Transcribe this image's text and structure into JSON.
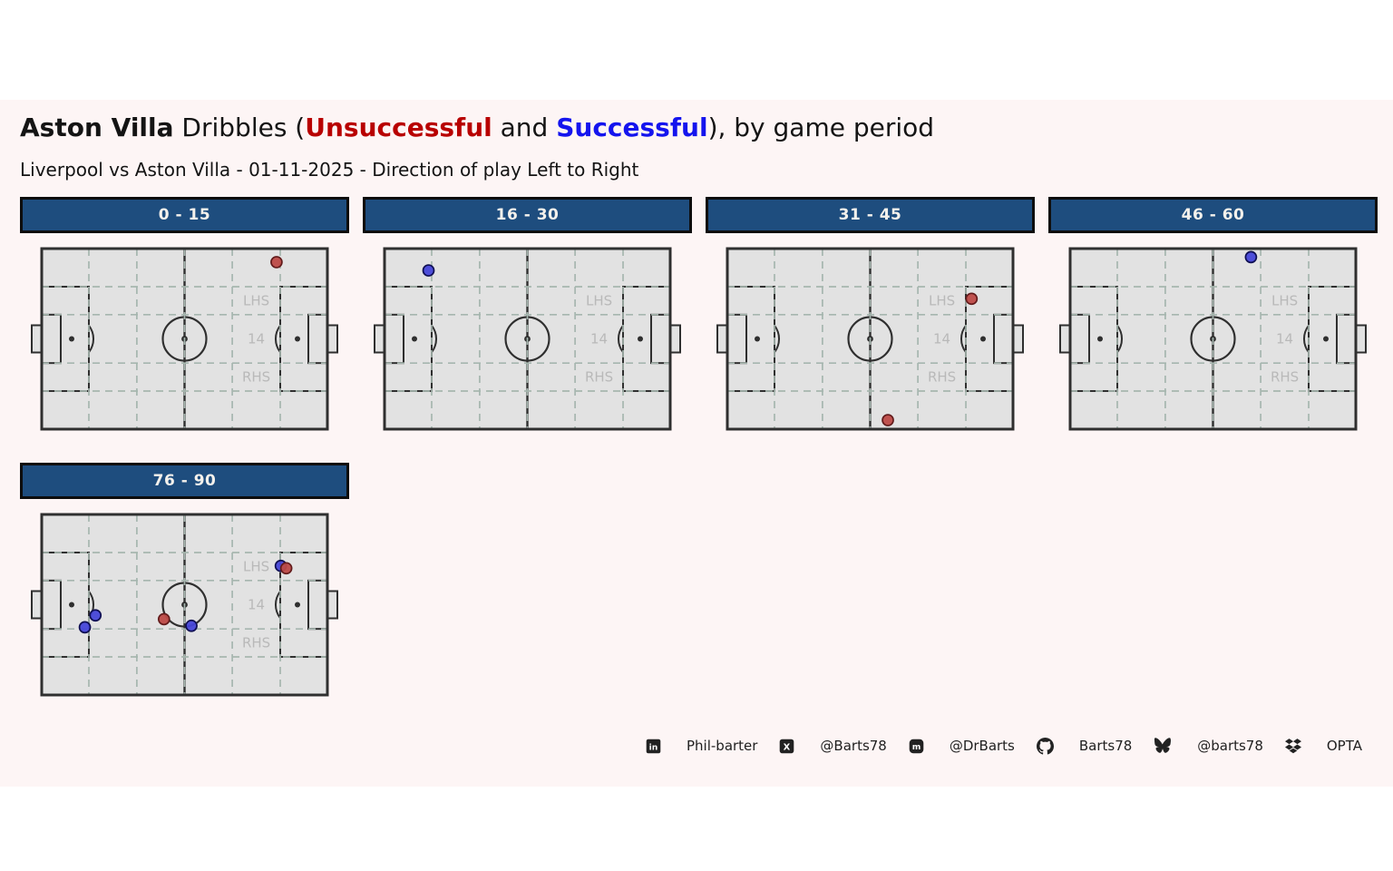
{
  "header": {
    "title_team": "Aston Villa",
    "title_mid": " Dribbles (",
    "title_unsuccessful": "Unsuccessful",
    "title_and": " and ",
    "title_successful": "Successful",
    "title_suffix": "), by game period",
    "subtitle": "Liverpool vs Aston Villa - 01-11-2025 - Direction of play Left to Right"
  },
  "colors": {
    "banner_bg": "#1e4d7e",
    "banner_border": "#0d0d0d",
    "banner_text": "#f4f1ec",
    "figure_bg": "#fdf5f5",
    "pitch_bg": "#e2e2e2",
    "pitch_line": "#2f2f2f",
    "grid_line": "#a6b6af",
    "zone_label": "#b9b9b9",
    "unsuccessful_fill": "#bd4a47",
    "unsuccessful_edge": "#621b1b",
    "successful_fill": "#4646d8",
    "successful_edge": "#0f0f52",
    "title_unsuccessful": "#b80000",
    "title_successful": "#1414ee"
  },
  "zone_labels": [
    "LHS",
    "14",
    "RHS"
  ],
  "chart_data": {
    "type": "scatter",
    "title": "Aston Villa Dribbles (Unsuccessful and Successful), by game period",
    "subtitle": "Liverpool vs Aston Villa - 01-11-2025 - Direction of play Left to Right",
    "legend": [
      {
        "name": "Unsuccessful",
        "color": "#b80000"
      },
      {
        "name": "Successful",
        "color": "#1414ee"
      }
    ],
    "facets": [
      {
        "label": "0 - 15",
        "points": [
          {
            "x_pct": 82.2,
            "y_pct": 7.5,
            "result": "unsuccessful"
          }
        ]
      },
      {
        "label": "16 - 30",
        "points": [
          {
            "x_pct": 15.4,
            "y_pct": 12.1,
            "result": "successful"
          }
        ]
      },
      {
        "label": "31 - 45",
        "points": [
          {
            "x_pct": 85.5,
            "y_pct": 27.8,
            "result": "unsuccessful"
          },
          {
            "x_pct": 56.2,
            "y_pct": 95.0,
            "result": "unsuccessful"
          }
        ]
      },
      {
        "label": "46 - 60",
        "points": [
          {
            "x_pct": 63.3,
            "y_pct": 4.7,
            "result": "successful"
          }
        ]
      },
      {
        "label": "76 - 90",
        "points": [
          {
            "x_pct": 83.7,
            "y_pct": 28.5,
            "result": "successful"
          },
          {
            "x_pct": 85.6,
            "y_pct": 29.8,
            "result": "unsuccessful"
          },
          {
            "x_pct": 18.8,
            "y_pct": 55.9,
            "result": "successful"
          },
          {
            "x_pct": 15.1,
            "y_pct": 62.5,
            "result": "successful"
          },
          {
            "x_pct": 42.8,
            "y_pct": 58.0,
            "result": "unsuccessful"
          },
          {
            "x_pct": 52.4,
            "y_pct": 61.7,
            "result": "successful"
          }
        ]
      }
    ]
  },
  "footer": {
    "items": [
      {
        "icon": "linkedin-icon",
        "label": "Phil-barter"
      },
      {
        "icon": "x-icon",
        "label": "@Barts78"
      },
      {
        "icon": "mastodon-icon",
        "label": "@DrBarts"
      },
      {
        "icon": "github-icon",
        "label": "Barts78"
      },
      {
        "icon": "bluesky-icon",
        "label": "@barts78"
      },
      {
        "icon": "dropbox-icon",
        "label": "OPTA"
      }
    ]
  }
}
